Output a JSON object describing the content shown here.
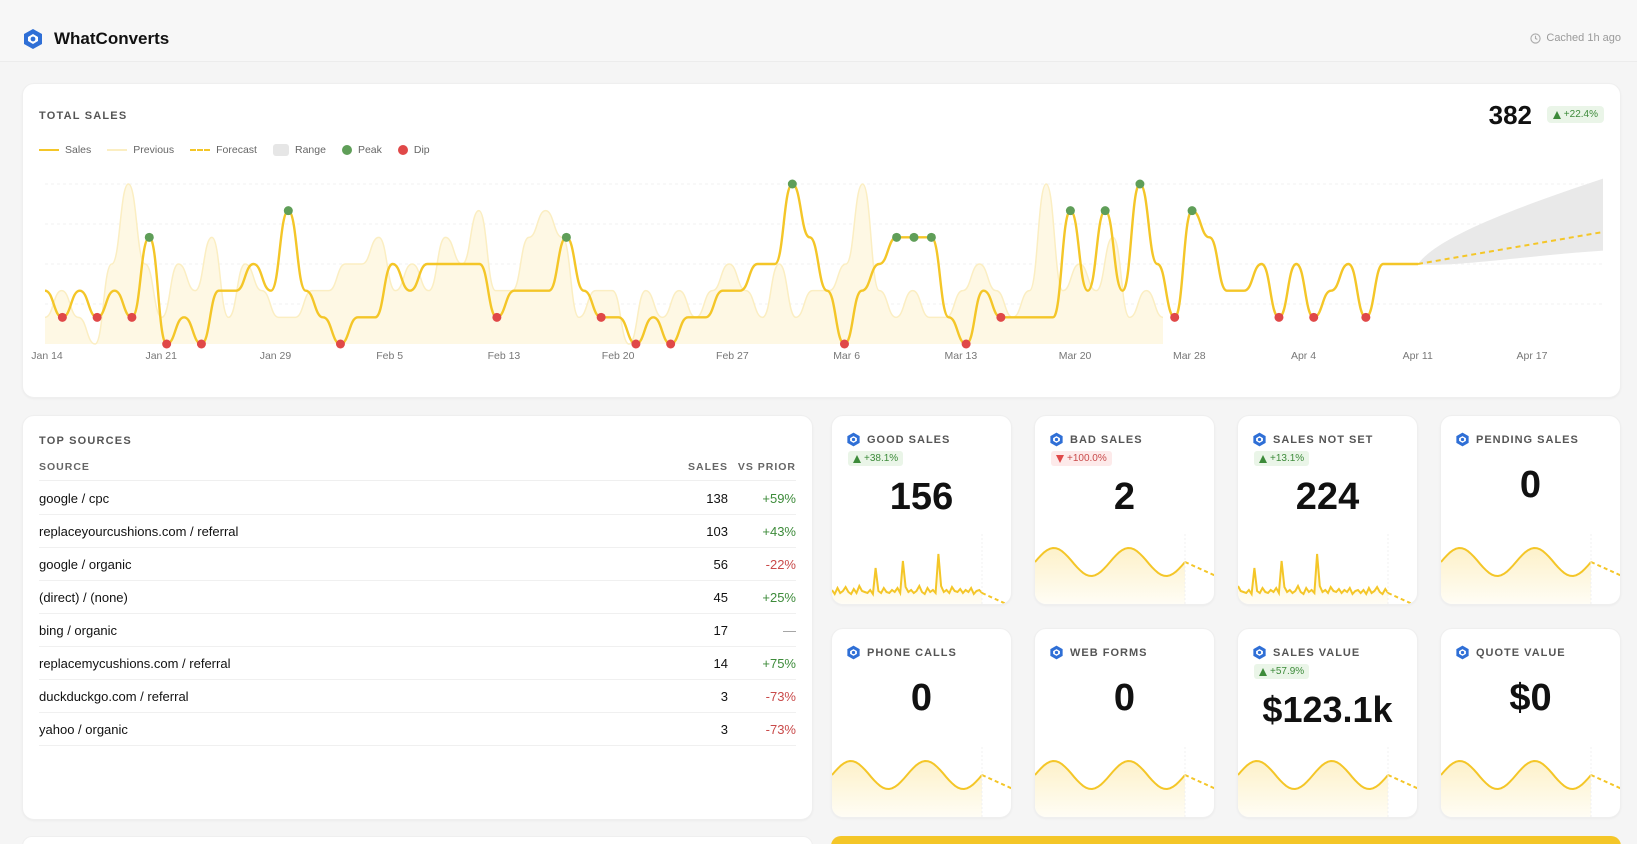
{
  "app": {
    "title": "WhatConverts",
    "cache_status": "Cached 1h ago",
    "logo_icon": "whatconverts-logo-icon",
    "clock_icon": "clock-icon"
  },
  "colors": {
    "accent": "#f4c628",
    "previous": "#fbeec2",
    "range": "#e6e6e6",
    "peak": "#5f9e58",
    "dip": "#e04848",
    "up": "#3d8b3a",
    "down": "#c94a4a"
  },
  "total_sales": {
    "title": "TOTAL SALES",
    "value": "382",
    "change": "+22.4%",
    "legend": [
      {
        "key": "sales",
        "label": "Sales"
      },
      {
        "key": "previous",
        "label": "Previous"
      },
      {
        "key": "forecast",
        "label": "Forecast"
      },
      {
        "key": "range",
        "label": "Range"
      },
      {
        "key": "peak",
        "label": "Peak"
      },
      {
        "key": "dip",
        "label": "Dip"
      }
    ]
  },
  "chart_data": {
    "type": "line",
    "x_tick_labels": [
      "Jan 14",
      "Jan 21",
      "Jan 29",
      "Feb 5",
      "Feb 13",
      "Feb 20",
      "Feb 27",
      "Mar 6",
      "Mar 13",
      "Mar 20",
      "Mar 28",
      "Apr 4",
      "Apr 11",
      "Apr 17"
    ],
    "ylim": [
      0,
      6
    ],
    "grid": true,
    "series": [
      {
        "name": "Sales",
        "values": [
          2,
          1,
          2,
          1,
          2,
          1,
          4,
          0,
          1,
          0,
          2,
          2,
          3,
          2,
          5,
          2,
          1,
          0,
          1,
          1,
          3,
          2,
          3,
          3,
          3,
          3,
          1,
          2,
          2,
          2,
          4,
          2,
          1,
          1,
          0,
          1,
          0,
          1,
          1,
          2,
          2,
          3,
          3,
          6,
          4,
          2,
          0,
          2,
          3,
          4,
          4,
          4,
          1,
          0,
          2,
          1,
          1,
          1,
          1,
          5,
          2,
          5,
          2,
          6,
          3,
          1,
          5,
          4,
          2,
          2,
          3,
          1,
          3,
          1,
          2,
          3,
          1,
          3,
          3,
          3
        ]
      },
      {
        "name": "Previous",
        "values": [
          1,
          2,
          1,
          0,
          3,
          6,
          3,
          1,
          3,
          2,
          4,
          1,
          3,
          2,
          1,
          1,
          2,
          2,
          3,
          3,
          4,
          2,
          3,
          2,
          4,
          3,
          5,
          2,
          2,
          4,
          5,
          4,
          1,
          2,
          2,
          0,
          2,
          1,
          2,
          1,
          2,
          3,
          2,
          1,
          3,
          1,
          2,
          2,
          3,
          6,
          2,
          1,
          2,
          1,
          1,
          2,
          3,
          2,
          1,
          2,
          6,
          2,
          3,
          2,
          4,
          1,
          2,
          1
        ]
      },
      {
        "name": "Forecast",
        "values": [
          3,
          3.3,
          3.6,
          3.9,
          4.2
        ]
      }
    ],
    "peaks": [
      4,
      5,
      5,
      6,
      4,
      5,
      5,
      6,
      5
    ],
    "dips": [
      1,
      1,
      0,
      0,
      0,
      1,
      1,
      1,
      0,
      0,
      0,
      1,
      1,
      1
    ]
  },
  "top_sources": {
    "title": "TOP SOURCES",
    "columns": {
      "source": "SOURCE",
      "sales": "SALES",
      "vs_prior": "VS PRIOR"
    },
    "rows": [
      {
        "source": "google / cpc",
        "sales": "138",
        "vs_prior": "+59%",
        "trend": "pos"
      },
      {
        "source": "replaceyourcushions.com / referral",
        "sales": "103",
        "vs_prior": "+43%",
        "trend": "pos"
      },
      {
        "source": "google / organic",
        "sales": "56",
        "vs_prior": "-22%",
        "trend": "neg"
      },
      {
        "source": "(direct) / (none)",
        "sales": "45",
        "vs_prior": "+25%",
        "trend": "pos"
      },
      {
        "source": "bing / organic",
        "sales": "17",
        "vs_prior": "—",
        "trend": "neu"
      },
      {
        "source": "replacemycushions.com / referral",
        "sales": "14",
        "vs_prior": "+75%",
        "trend": "pos"
      },
      {
        "source": "duckduckgo.com / referral",
        "sales": "3",
        "vs_prior": "-73%",
        "trend": "neg"
      },
      {
        "source": "yahoo / organic",
        "sales": "3",
        "vs_prior": "-73%",
        "trend": "neg"
      }
    ]
  },
  "kpis": [
    {
      "title": "GOOD SALES",
      "value": "156",
      "change": "+38.1%",
      "dir": "up",
      "spark": "noisy"
    },
    {
      "title": "BAD SALES",
      "value": "2",
      "change": "+100.0%",
      "dir": "down",
      "spark": "wave"
    },
    {
      "title": "SALES NOT SET",
      "value": "224",
      "change": "+13.1%",
      "dir": "up",
      "spark": "noisy"
    },
    {
      "title": "PENDING SALES",
      "value": "0",
      "change": "",
      "dir": "",
      "spark": "wave"
    },
    {
      "title": "PHONE CALLS",
      "value": "0",
      "change": "",
      "dir": "",
      "spark": "wave"
    },
    {
      "title": "WEB FORMS",
      "value": "0",
      "change": "",
      "dir": "",
      "spark": "wave"
    },
    {
      "title": "SALES VALUE",
      "value": "$123.1k",
      "change": "+57.9%",
      "dir": "up",
      "spark": "wave"
    },
    {
      "title": "QUOTE VALUE",
      "value": "$0",
      "change": "",
      "dir": "",
      "spark": "wave"
    }
  ]
}
